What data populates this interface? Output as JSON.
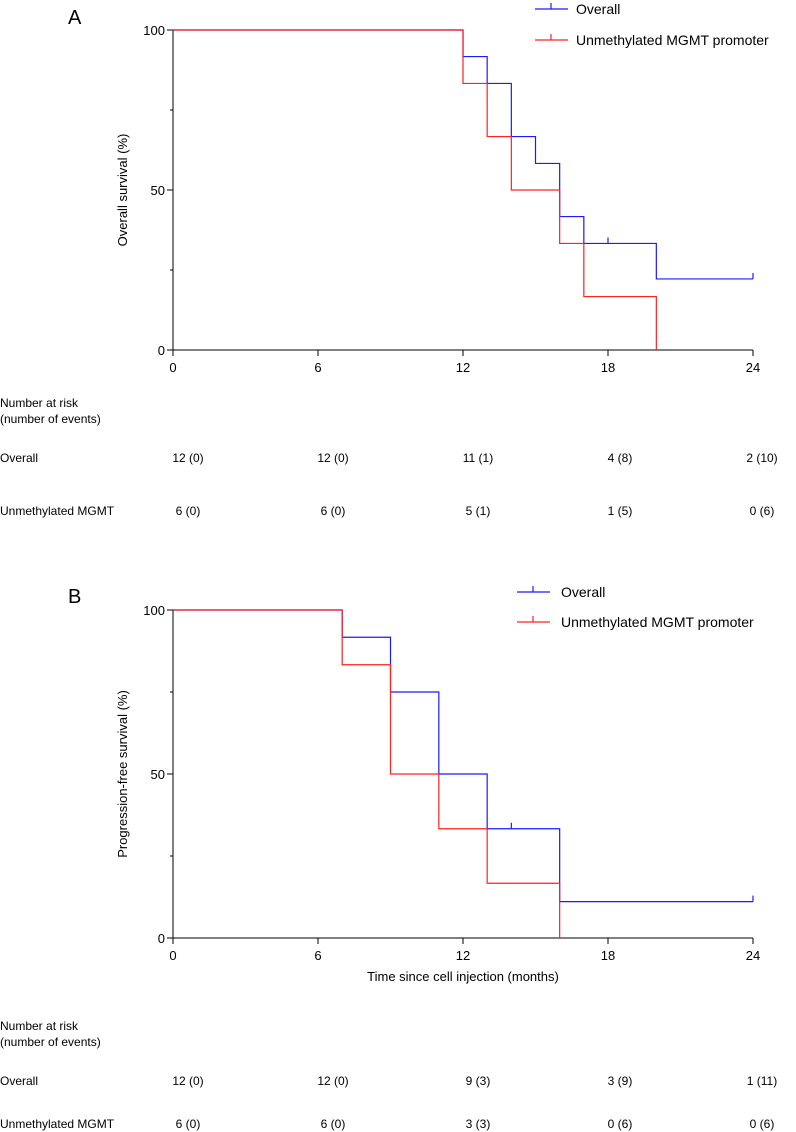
{
  "chart_data": [
    {
      "type": "line",
      "subtype": "kaplan-meier",
      "panel_label": "A",
      "xlabel": "",
      "ylabel": "Overall survival (%)",
      "xlim": [
        0,
        24
      ],
      "ylim": [
        0,
        100
      ],
      "x_ticks": [
        0,
        6,
        12,
        18,
        24
      ],
      "y_ticks": [
        0,
        50,
        100
      ],
      "legend_position": "top-right",
      "series": [
        {
          "name": "Overall",
          "color": "#1a1aff",
          "steps": [
            [
              0,
              100
            ],
            [
              12,
              91.7
            ],
            [
              13,
              83.3
            ],
            [
              14,
              66.7
            ],
            [
              15,
              58.3
            ],
            [
              16,
              41.7
            ],
            [
              17,
              33.3
            ],
            [
              20,
              22.2
            ],
            [
              24,
              22.2
            ]
          ],
          "censor_ticks": [
            [
              18,
              33.3
            ],
            [
              24,
              22.2
            ]
          ]
        },
        {
          "name": "Unmethylated MGMT promoter",
          "color": "#ff2020",
          "steps": [
            [
              0,
              100
            ],
            [
              12,
              83.3
            ],
            [
              13,
              66.7
            ],
            [
              14,
              50
            ],
            [
              16,
              33.3
            ],
            [
              17,
              16.7
            ],
            [
              20,
              0
            ]
          ],
          "censor_ticks": []
        }
      ],
      "risk_table": {
        "header": [
          "Number at risk",
          "(number of events)"
        ],
        "times": [
          0,
          6,
          12,
          18,
          24
        ],
        "rows": [
          {
            "label": "Overall",
            "values": [
              "12 (0)",
              "12 (0)",
              "11 (1)",
              "4 (8)",
              "2 (10)"
            ]
          },
          {
            "label": "Unmethylated MGMT",
            "values": [
              "6 (0)",
              "6 (0)",
              "5 (1)",
              "1 (5)",
              "0 (6)"
            ]
          }
        ]
      }
    },
    {
      "type": "line",
      "subtype": "kaplan-meier",
      "panel_label": "B",
      "xlabel": "Time since cell injection (months)",
      "ylabel": "Progression-free survival (%)",
      "xlim": [
        0,
        24
      ],
      "ylim": [
        0,
        100
      ],
      "x_ticks": [
        0,
        6,
        12,
        18,
        24
      ],
      "y_ticks": [
        0,
        50,
        100
      ],
      "legend_position": "top-right",
      "series": [
        {
          "name": "Overall",
          "color": "#1a1aff",
          "steps": [
            [
              0,
              100
            ],
            [
              7,
              91.7
            ],
            [
              9,
              75
            ],
            [
              11,
              50
            ],
            [
              13,
              33.3
            ],
            [
              16,
              11.1
            ],
            [
              24,
              11.1
            ]
          ],
          "censor_ticks": [
            [
              14,
              33.3
            ],
            [
              24,
              11.1
            ]
          ]
        },
        {
          "name": "Unmethylated MGMT promoter",
          "color": "#ff2020",
          "steps": [
            [
              0,
              100
            ],
            [
              7,
              83.3
            ],
            [
              9,
              50
            ],
            [
              11,
              33.3
            ],
            [
              13,
              16.7
            ],
            [
              16,
              0
            ]
          ],
          "censor_ticks": []
        }
      ],
      "risk_table": {
        "header": [
          "Number at risk",
          "(number of events)"
        ],
        "times": [
          0,
          6,
          12,
          18,
          24
        ],
        "rows": [
          {
            "label": "Overall",
            "values": [
              "12 (0)",
              "12 (0)",
              "9 (3)",
              "3 (9)",
              "1 (11)"
            ]
          },
          {
            "label": "Unmethylated MGMT",
            "values": [
              "6 (0)",
              "6 (0)",
              "3 (3)",
              "0 (6)",
              "0 (6)"
            ]
          }
        ]
      }
    }
  ]
}
